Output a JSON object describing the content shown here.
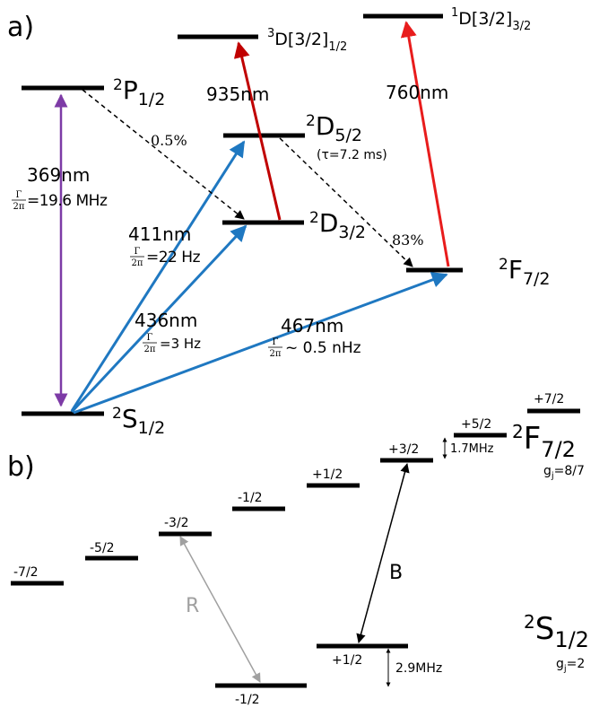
{
  "colors": {
    "purple": "#7d3ba6",
    "blue": "#1f78c1",
    "dark_red": "#c00000",
    "red": "#e81c1c",
    "gray": "#a0a0a0",
    "black": "#000000"
  },
  "panel_a": {
    "label": "a)",
    "levels": {
      "p12": {
        "main": "P",
        "sup": "2",
        "sub": "1/2"
      },
      "d52": {
        "main": "D",
        "sup": "2",
        "sub": "5/2",
        "note": "(τ=7.2 ms)"
      },
      "d32": {
        "main": "D",
        "sup": "2",
        "sub": "3/2"
      },
      "f72": {
        "main": "F",
        "sup": "2",
        "sub": "7/2"
      },
      "s12": {
        "main": "S",
        "sup": "2",
        "sub": "1/2"
      },
      "d3_high": {
        "sup": "3",
        "main": "D[3/2]",
        "sub": "1/2"
      },
      "d1_high": {
        "sup": "1",
        "main": "D[3/2]",
        "sub": "3/2"
      }
    },
    "transitions": {
      "t369": {
        "wavelength": "369nm",
        "gamma_num": "Γ",
        "gamma_den": "2π",
        "width": "=19.6 MHz"
      },
      "t411": {
        "wavelength": "411nm",
        "gamma_num": "Γ",
        "gamma_den": "2π",
        "width": "=22 Hz"
      },
      "t436": {
        "wavelength": "436nm",
        "gamma_num": "Γ",
        "gamma_den": "2π",
        "width": "=3 Hz"
      },
      "t467": {
        "wavelength": "467nm",
        "gamma_num": "Γ",
        "gamma_den": "2π",
        "width": "~ 0.5 nHz"
      },
      "t935": {
        "wavelength": "935nm"
      },
      "t760": {
        "wavelength": "760nm"
      }
    },
    "branching": {
      "p_to_d": "0.5%",
      "d_to_f": "83%"
    }
  },
  "panel_b": {
    "label": "b)",
    "f_levels": [
      "-7/2",
      "-5/2",
      "-3/2",
      "-1/2",
      "+1/2",
      "+3/2",
      "+5/2",
      "+7/2"
    ],
    "s_levels": [
      "-1/2",
      "+1/2"
    ],
    "f_term": {
      "main": "F",
      "sup": "2",
      "sub": "7/2",
      "g": "g",
      "g_sub": "j",
      "g_val": "=8/7"
    },
    "s_term": {
      "main": "S",
      "sup": "2",
      "sub": "1/2",
      "g": "g",
      "g_sub": "j",
      "g_val": "=2"
    },
    "f_splitting": "1.7MHz",
    "s_splitting": "2.9MHz",
    "arrow_R": "R",
    "arrow_B": "B"
  }
}
